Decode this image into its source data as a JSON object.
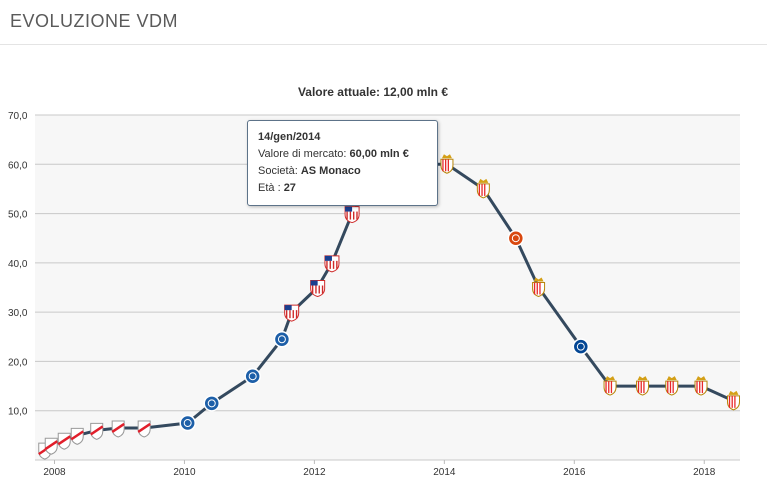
{
  "header": {
    "title": "EVOLUZIONE VDM"
  },
  "tooltip": {
    "date": "14/gen/2014",
    "value_label": "Valore di mercato:",
    "value": "60,00 mln €",
    "club_label": "Società:",
    "club": "AS Monaco",
    "age_label": "Età :",
    "age": "27"
  },
  "chart_data": {
    "type": "line",
    "title": "Valore attuale: 12,00 mln €",
    "xlabel": "",
    "ylabel": "",
    "xlim": [
      2007.7,
      2018.55
    ],
    "ylim": [
      0,
      70
    ],
    "yticks": [
      "10,0",
      "20,0",
      "30,0",
      "40,0",
      "50,0",
      "60,0",
      "70,0"
    ],
    "ytick_values": [
      10,
      20,
      30,
      40,
      50,
      60,
      70
    ],
    "xticks": [
      "2008",
      "2010",
      "2012",
      "2014",
      "2016",
      "2018"
    ],
    "xtick_values": [
      2008,
      2010,
      2012,
      2014,
      2016,
      2018
    ],
    "grid": true,
    "line_color": "#34495e",
    "marker_colors": {
      "River Plate": "#e11f2b",
      "FC Porto": "#1d5fa8",
      "Atlético Madrid": "#cf2b2b",
      "AS Monaco": "#e8292b",
      "Manchester United": "#d9480f",
      "Chelsea": "#034694"
    },
    "series": [
      {
        "x": [
          2007.85,
          2007.95,
          2008.15,
          2008.35,
          2008.65,
          2008.98,
          2009.38,
          2010.05,
          2010.42,
          2011.05,
          2011.5,
          2011.65,
          2012.05,
          2012.27,
          2012.58,
          2013.05,
          2013.55,
          2014.04,
          2014.6,
          2015.1,
          2015.45,
          2016.1,
          2016.55,
          2017.05,
          2017.5,
          2017.95,
          2018.45
        ],
        "y": [
          2,
          3,
          4,
          5,
          6,
          6.5,
          6.5,
          7.5,
          11.5,
          17,
          24.5,
          30,
          35,
          40,
          50,
          60,
          60,
          60,
          55,
          45,
          35,
          23,
          15,
          15,
          15,
          15,
          12
        ],
        "clubs": [
          "River Plate",
          "River Plate",
          "River Plate",
          "River Plate",
          "River Plate",
          "River Plate",
          "River Plate",
          "FC Porto",
          "FC Porto",
          "FC Porto",
          "FC Porto",
          "Atlético Madrid",
          "Atlético Madrid",
          "Atlético Madrid",
          "Atlético Madrid",
          "Atlético Madrid",
          "Atlético Madrid",
          "AS Monaco",
          "AS Monaco",
          "Manchester United",
          "AS Monaco",
          "Chelsea",
          "AS Monaco",
          "AS Monaco",
          "AS Monaco",
          "AS Monaco",
          "AS Monaco"
        ]
      }
    ]
  }
}
